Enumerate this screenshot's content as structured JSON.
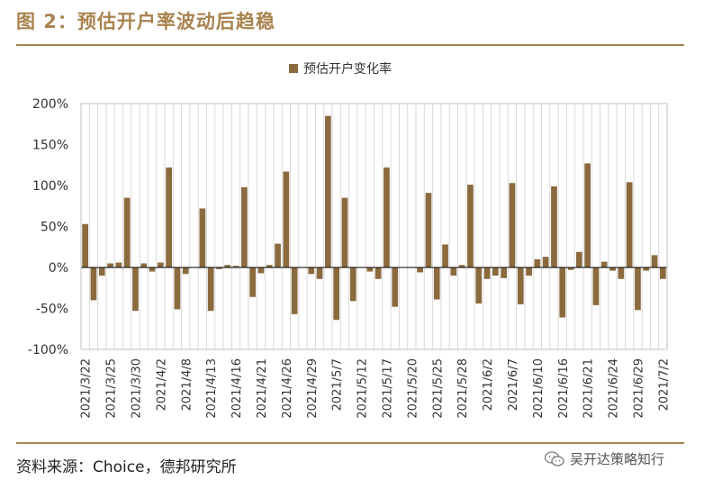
{
  "header": {
    "title": "图 2：预估开户率波动后趋稳"
  },
  "footer": {
    "source": "资料来源：Choice，德邦研究所",
    "watermark": "吴开达策略知行"
  },
  "colors": {
    "accent": "#a9834e",
    "bar": "#8b6a3e",
    "grid": "#d9d9d9"
  },
  "chart_data": {
    "type": "bar",
    "title": "",
    "legend": [
      "预估开户变化率"
    ],
    "legend_position": "top-center",
    "ylim": [
      -100,
      200
    ],
    "yticks": [
      -100,
      -50,
      0,
      50,
      100,
      150,
      200
    ],
    "ytick_labels": [
      "-100%",
      "-50%",
      "0%",
      "50%",
      "100%",
      "150%",
      "200%"
    ],
    "xtick_labels": [
      "2021/3/22",
      "2021/3/25",
      "2021/3/30",
      "2021/4/2",
      "2021/4/8",
      "2021/4/13",
      "2021/4/16",
      "2021/4/21",
      "2021/4/26",
      "2021/4/29",
      "2021/5/7",
      "2021/5/12",
      "2021/5/17",
      "2021/5/20",
      "2021/5/25",
      "2021/5/28",
      "2021/6/2",
      "2021/6/7",
      "2021/6/10",
      "2021/6/16",
      "2021/6/21",
      "2021/6/24",
      "2021/6/29",
      "2021/7/2"
    ],
    "xtick_every": 3,
    "grid": "vertical",
    "series": [
      {
        "name": "预估开户变化率",
        "values": [
          53,
          -40,
          -10,
          5,
          6,
          85,
          -53,
          5,
          -5,
          6,
          122,
          -51,
          -8,
          0,
          72,
          -53,
          -2,
          3,
          2,
          98,
          -36,
          -7,
          3,
          29,
          117,
          -57,
          0,
          -8,
          -14,
          185,
          -64,
          85,
          -41,
          0,
          -5,
          -14,
          122,
          -48,
          0,
          0,
          -6,
          91,
          -39,
          28,
          -10,
          3,
          101,
          -44,
          -14,
          -10,
          -13,
          103,
          -45,
          -10,
          10,
          13,
          99,
          -61,
          -3,
          19,
          127,
          -46,
          7,
          -4,
          -14,
          104,
          -52,
          -4,
          15,
          -14
        ]
      }
    ]
  }
}
